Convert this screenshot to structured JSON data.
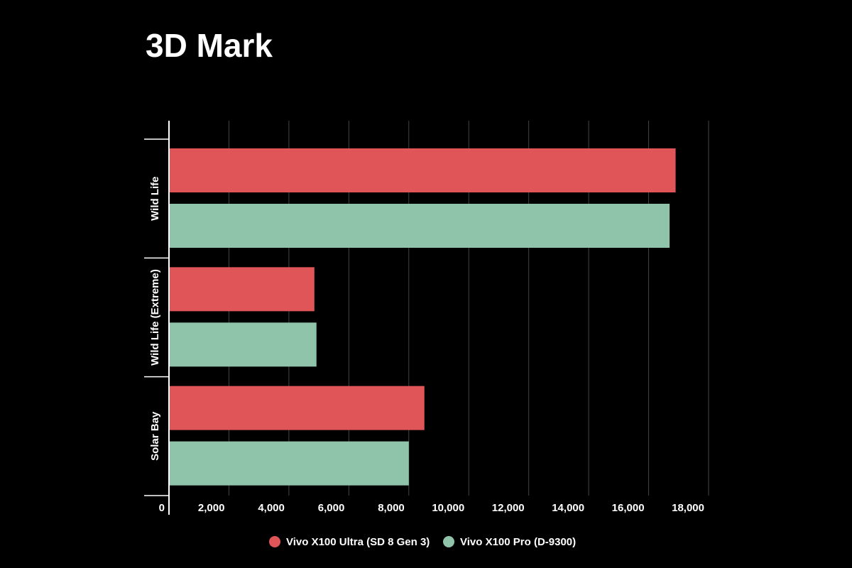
{
  "chart_data": {
    "type": "hbar",
    "title": "3D Mark",
    "categories": [
      "Wild Life",
      "Wild Life (Extreme)",
      "Solar Bay"
    ],
    "series": [
      {
        "name": "Vivo X100 Ultra (SD 8 Gen 3)",
        "color": "#e05558",
        "values": [
          16900,
          4850,
          8520
        ]
      },
      {
        "name": "Vivo X100 Pro (D-9300)",
        "color": "#8fc4aa",
        "values": [
          16700,
          4920,
          8000
        ]
      }
    ],
    "xlim": [
      0,
      18000
    ],
    "xticks": [
      0,
      {
        "value": 2000,
        "label": "2,000"
      },
      {
        "value": 4000,
        "label": "4,000"
      },
      {
        "value": 6000,
        "label": "6,000"
      },
      {
        "value": 8000,
        "label": "8,000"
      },
      {
        "value": 10000,
        "label": "10,000"
      },
      {
        "value": 12000,
        "label": "12,000"
      },
      {
        "value": 14000,
        "label": "14,000"
      },
      {
        "value": 16000,
        "label": "16,000"
      },
      {
        "value": 18000,
        "label": "18,000"
      }
    ],
    "grid": true
  }
}
